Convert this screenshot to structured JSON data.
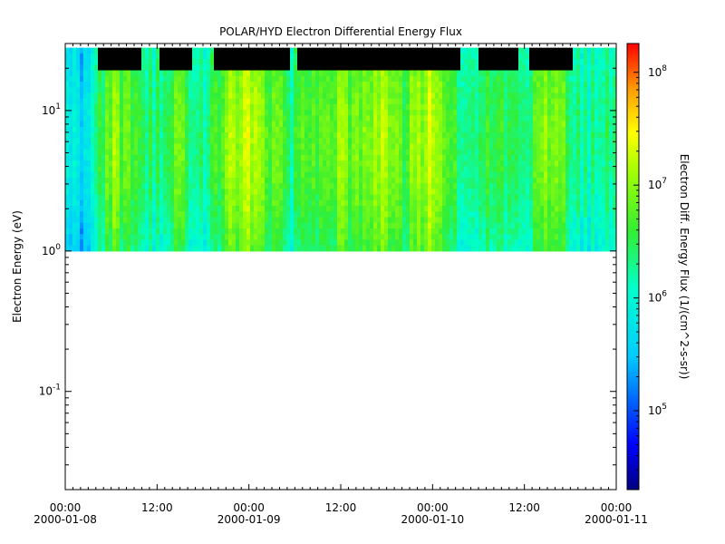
{
  "chart_data": {
    "type": "heatmap",
    "title": "POLAR/HYD  Electron Differential Energy Flux",
    "ylabel": "Electron Energy (eV)",
    "colorbar_label": "Electron Diff. Energy Flux (1/(cm^2-s-sr))",
    "x_range": [
      "2000-01-08 00:00",
      "2000-01-11 00:00"
    ],
    "x_ticks": [
      {
        "time": "00:00",
        "date": "2000-01-08"
      },
      {
        "time": "12:00",
        "date": ""
      },
      {
        "time": "00:00",
        "date": "2000-01-09"
      },
      {
        "time": "12:00",
        "date": ""
      },
      {
        "time": "00:00",
        "date": "2000-01-10"
      },
      {
        "time": "12:00",
        "date": ""
      },
      {
        "time": "00:00",
        "date": "2000-01-11"
      }
    ],
    "y_scale": "log",
    "y_range": [
      0.02,
      30
    ],
    "y_ticks": [
      {
        "base": "10",
        "exp": "1",
        "value": 10
      },
      {
        "base": "10",
        "exp": "0",
        "value": 1
      },
      {
        "base": "10",
        "exp": "-1",
        "value": 0.1
      }
    ],
    "data_energy_range": [
      1,
      28
    ],
    "color_scale": "log",
    "color_range": [
      20000,
      180000000
    ],
    "colorbar_ticks": [
      {
        "base": "10",
        "exp": "8",
        "value": 100000000
      },
      {
        "base": "10",
        "exp": "7",
        "value": 10000000
      },
      {
        "base": "10",
        "exp": "6",
        "value": 1000000
      },
      {
        "base": "10",
        "exp": "5",
        "value": 100000
      }
    ],
    "flux_profile": {
      "hours": [
        0,
        2,
        4,
        6,
        8,
        10,
        12,
        14,
        16,
        18,
        20,
        22,
        24,
        26,
        28,
        30,
        32,
        34,
        36,
        38,
        40,
        42,
        44,
        46,
        48,
        50,
        52,
        54,
        56,
        58,
        60,
        62,
        64,
        66,
        68,
        70,
        72
      ],
      "log_flux_mid_energy": [
        5.8,
        5.5,
        6.2,
        6.8,
        6.6,
        6.3,
        6.2,
        6.6,
        6.4,
        6.0,
        6.5,
        6.9,
        7.0,
        6.8,
        6.5,
        6.2,
        6.6,
        6.4,
        6.8,
        6.6,
        6.8,
        7.0,
        6.5,
        6.9,
        7.1,
        6.6,
        6.2,
        6.3,
        6.5,
        6.4,
        6.2,
        6.6,
        6.9,
        6.4,
        6.0,
        6.3,
        6.0
      ]
    },
    "colors": {
      "saturation_black": "#000000",
      "background": "#ffffff"
    }
  }
}
